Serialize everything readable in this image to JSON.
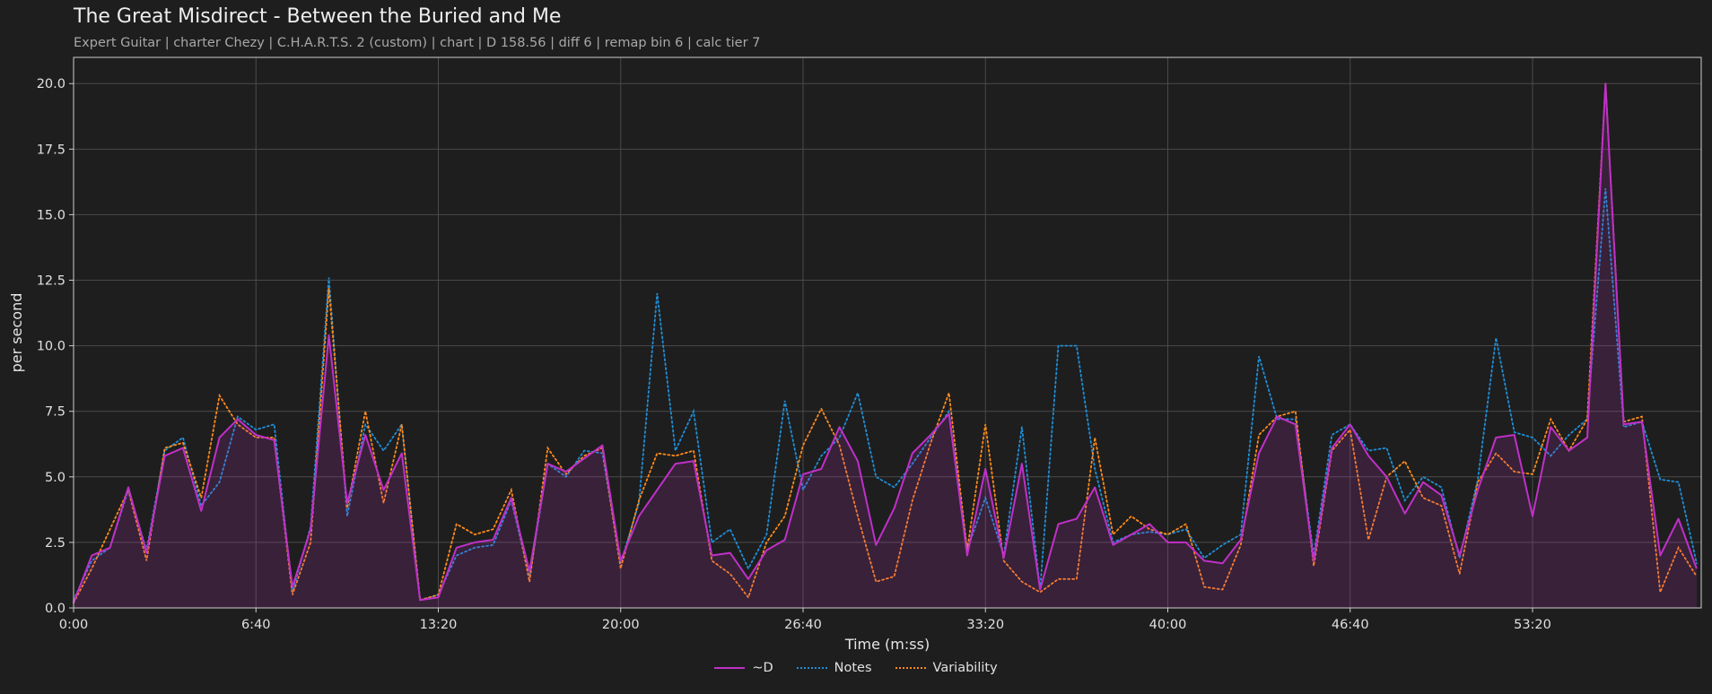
{
  "header": {
    "title": "The Great Misdirect - Between the Buried and Me",
    "subtitle": "Expert Guitar  |  charter Chezy  |  C.H.A.R.T.S. 2 (custom)  |  chart  |  D 158.56  |  diff 6  |  remap bin 6  |  calc tier 7"
  },
  "chart_data": {
    "type": "line",
    "xlabel": "Time (m:ss)",
    "ylabel": "per second",
    "xlim": [
      0,
      3570
    ],
    "ylim": [
      0,
      21
    ],
    "grid": true,
    "legend_position": "bottom-center",
    "x_ticks": [
      {
        "value": 0,
        "label": "0:00"
      },
      {
        "value": 400,
        "label": "6:40"
      },
      {
        "value": 800,
        "label": "13:20"
      },
      {
        "value": 1200,
        "label": "20:00"
      },
      {
        "value": 1600,
        "label": "26:40"
      },
      {
        "value": 2000,
        "label": "33:20"
      },
      {
        "value": 2400,
        "label": "40:00"
      },
      {
        "value": 2800,
        "label": "46:40"
      },
      {
        "value": 3200,
        "label": "53:20"
      }
    ],
    "y_ticks": [
      {
        "value": 0,
        "label": "0.0"
      },
      {
        "value": 2.5,
        "label": "2.5"
      },
      {
        "value": 5,
        "label": "5.0"
      },
      {
        "value": 7.5,
        "label": "7.5"
      },
      {
        "value": 10,
        "label": "10.0"
      },
      {
        "value": 12.5,
        "label": "12.5"
      },
      {
        "value": 15,
        "label": "15.0"
      },
      {
        "value": 17.5,
        "label": "17.5"
      },
      {
        "value": 20,
        "label": "20.0"
      }
    ],
    "x": [
      0,
      40,
      80,
      120,
      160,
      200,
      240,
      280,
      320,
      360,
      400,
      440,
      480,
      520,
      560,
      600,
      640,
      680,
      720,
      760,
      800,
      840,
      880,
      920,
      960,
      1000,
      1040,
      1080,
      1120,
      1160,
      1200,
      1240,
      1280,
      1320,
      1360,
      1400,
      1440,
      1480,
      1520,
      1560,
      1600,
      1640,
      1680,
      1720,
      1760,
      1800,
      1840,
      1880,
      1920,
      1960,
      2000,
      2040,
      2080,
      2120,
      2160,
      2200,
      2240,
      2280,
      2320,
      2360,
      2400,
      2440,
      2480,
      2520,
      2560,
      2600,
      2640,
      2680,
      2720,
      2760,
      2800,
      2840,
      2880,
      2920,
      2960,
      3000,
      3040,
      3080,
      3120,
      3160,
      3200,
      3240,
      3280,
      3320,
      3360,
      3400,
      3440,
      3480,
      3520,
      3560
    ],
    "series": [
      {
        "name": "~D",
        "color": "#c030c8",
        "style": "solid",
        "values": [
          0.2,
          2.0,
          2.3,
          4.6,
          2.1,
          5.8,
          6.1,
          3.7,
          6.5,
          7.2,
          6.6,
          6.4,
          0.8,
          3.0,
          10.4,
          4.0,
          6.6,
          4.5,
          5.9,
          0.3,
          0.4,
          2.3,
          2.5,
          2.6,
          4.2,
          1.4,
          5.5,
          5.2,
          5.7,
          6.2,
          1.8,
          3.5,
          4.5,
          5.5,
          5.6,
          2.0,
          2.1,
          1.1,
          2.2,
          2.6,
          5.1,
          5.3,
          6.9,
          5.6,
          2.4,
          3.8,
          5.9,
          6.6,
          7.4,
          2.0,
          5.3,
          1.9,
          5.5,
          0.7,
          3.2,
          3.4,
          4.6,
          2.4,
          2.8,
          3.2,
          2.5,
          2.5,
          1.8,
          1.7,
          2.6,
          5.9,
          7.3,
          7.0,
          1.8,
          6.1,
          7.0,
          5.8,
          5.0,
          3.6,
          4.8,
          4.3,
          2.0,
          4.5,
          6.5,
          6.6,
          3.5,
          6.9,
          6.0,
          6.5,
          20.0,
          7.0,
          7.1,
          2.0,
          3.4,
          1.5
        ]
      },
      {
        "name": "Notes",
        "color": "#1f8fd8",
        "style": "dotted",
        "values": [
          0.3,
          1.8,
          2.3,
          4.5,
          2.2,
          6.0,
          6.5,
          3.9,
          4.8,
          7.3,
          6.8,
          7.0,
          0.6,
          3.1,
          12.6,
          3.5,
          7.0,
          6.0,
          7.0,
          0.3,
          0.5,
          2.0,
          2.3,
          2.4,
          4.1,
          1.2,
          5.5,
          5.0,
          6.0,
          5.9,
          1.7,
          4.0,
          12.0,
          6.0,
          7.5,
          2.5,
          3.0,
          1.5,
          2.8,
          7.9,
          4.5,
          5.8,
          6.5,
          8.2,
          5.0,
          4.6,
          5.5,
          6.5,
          7.5,
          2.2,
          4.2,
          2.0,
          6.9,
          0.7,
          10.0,
          10.0,
          5.3,
          2.5,
          2.8,
          2.9,
          2.8,
          3.0,
          1.9,
          2.4,
          2.8,
          9.6,
          7.2,
          7.2,
          2.0,
          6.6,
          7.0,
          6.0,
          6.1,
          4.1,
          5.0,
          4.6,
          1.9,
          4.9,
          10.3,
          6.7,
          6.5,
          5.8,
          6.6,
          7.2,
          16.0,
          6.9,
          7.1,
          4.9,
          4.8,
          1.7
        ]
      },
      {
        "name": "Variability",
        "color": "#ff8a1a",
        "style": "dotted",
        "values": [
          0.2,
          1.5,
          3.0,
          4.5,
          1.8,
          6.1,
          6.3,
          4.2,
          8.1,
          7.0,
          6.5,
          6.5,
          0.5,
          2.5,
          12.2,
          3.8,
          7.5,
          4.0,
          7.0,
          0.3,
          0.5,
          3.2,
          2.8,
          3.0,
          4.5,
          1.0,
          6.1,
          5.1,
          5.8,
          6.1,
          1.5,
          4.1,
          5.9,
          5.8,
          6.0,
          1.8,
          1.3,
          0.4,
          2.5,
          3.5,
          6.2,
          7.6,
          6.2,
          3.5,
          1.0,
          1.2,
          4.1,
          6.3,
          8.2,
          2.2,
          7.0,
          1.8,
          1.0,
          0.6,
          1.1,
          1.1,
          6.5,
          2.8,
          3.5,
          3.0,
          2.8,
          3.2,
          0.8,
          0.7,
          2.4,
          6.6,
          7.3,
          7.5,
          1.6,
          6.0,
          6.8,
          2.6,
          5.0,
          5.6,
          4.2,
          3.9,
          1.3,
          4.8,
          5.9,
          5.2,
          5.1,
          7.2,
          6.0,
          7.2,
          20.0,
          7.1,
          7.3,
          0.6,
          2.3,
          1.2
        ]
      }
    ]
  }
}
